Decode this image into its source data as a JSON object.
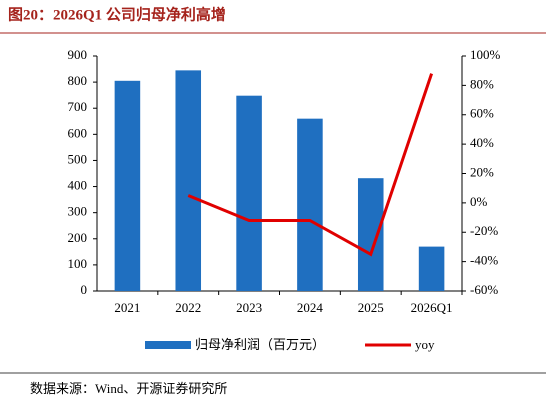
{
  "chart_data": {
    "type": "bar",
    "title": "图20：2026Q1 公司归母净利高增",
    "categories": [
      "2021",
      "2022",
      "2023",
      "2024",
      "2025",
      "2026Q1"
    ],
    "series": [
      {
        "name": "归母净利润（百万元）",
        "color": "#1f6fc0",
        "values": [
          805,
          845,
          748,
          660,
          432,
          170
        ]
      },
      {
        "name": "yoy",
        "type": "line",
        "axis": "y2",
        "color": "#e00000",
        "values": [
          null,
          5,
          -12,
          -12,
          -35,
          88
        ]
      }
    ],
    "ylim": [
      0,
      900
    ],
    "yticks": [
      0,
      100,
      200,
      300,
      400,
      500,
      600,
      700,
      800,
      900
    ],
    "y2lim": [
      -60,
      100
    ],
    "y2ticks": [
      {
        "value": -60,
        "label": "-60%"
      },
      {
        "value": -40,
        "label": "-40%"
      },
      {
        "value": -20,
        "label": "-20%"
      },
      {
        "value": 0,
        "label": "0%"
      },
      {
        "value": 20,
        "label": "20%"
      },
      {
        "value": 40,
        "label": "40%"
      },
      {
        "value": 60,
        "label": "60%"
      },
      {
        "value": 80,
        "label": "80%"
      },
      {
        "value": 100,
        "label": "100%"
      }
    ],
    "source": "数据来源：Wind、开源证券研究所"
  }
}
